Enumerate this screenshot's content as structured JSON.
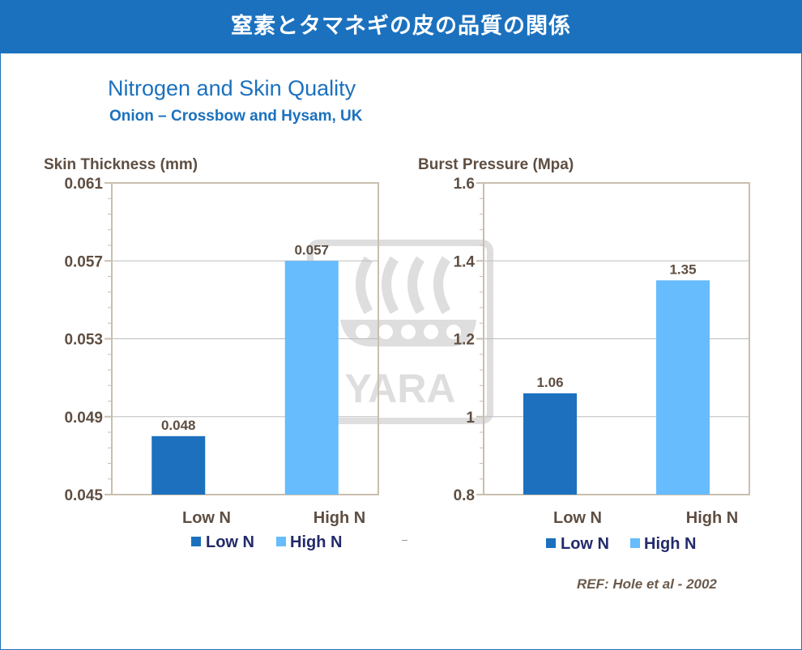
{
  "banner": {
    "title": "窒素とタマネギの皮の品質の関係"
  },
  "header": {
    "title": "Nitrogen and Skin Quality",
    "subtitle": "Onion – Crossbow and Hysam, UK"
  },
  "reference": "REF: Hole et al -  2002",
  "watermark": {
    "text": "YARA",
    "icon": "yara-viking-ship-logo"
  },
  "colors": {
    "banner": "#1b71be",
    "low_n": "#1c70be",
    "high_n": "#66bcfd",
    "axis_text": "#5e4e42",
    "plot_border": "#c9bfae",
    "grid": "#bdbdbd"
  },
  "chart_data": [
    {
      "type": "bar",
      "ylabel": "Skin Thickness (mm)",
      "categories": [
        "Low N",
        "High N"
      ],
      "series": [
        {
          "name": "Low N",
          "values": [
            0.048,
            null
          ]
        },
        {
          "name": "High N",
          "values": [
            null,
            0.057
          ]
        }
      ],
      "data_labels": [
        "0.048",
        "0.057"
      ],
      "ylim": [
        0.045,
        0.061
      ],
      "yticks": [
        0.045,
        0.049,
        0.053,
        0.057,
        0.061
      ],
      "ytick_labels": [
        "0.045",
        "0.049",
        "0.053",
        "0.057",
        "0.061"
      ],
      "legend": [
        "Low N",
        "High N"
      ],
      "legend_position": "bottom",
      "grid": true
    },
    {
      "type": "bar",
      "ylabel": "Burst Pressure (Mpa)",
      "categories": [
        "Low N",
        "High N"
      ],
      "series": [
        {
          "name": "Low N",
          "values": [
            1.06,
            null
          ]
        },
        {
          "name": "High N",
          "values": [
            null,
            1.35
          ]
        }
      ],
      "data_labels": [
        "1.06",
        "1.35"
      ],
      "ylim": [
        0.8,
        1.6
      ],
      "yticks": [
        0.8,
        1.0,
        1.2,
        1.4,
        1.6
      ],
      "ytick_labels": [
        "0.8",
        "1",
        "1.2",
        "1.4",
        "1.6"
      ],
      "legend": [
        "Low N",
        "High N"
      ],
      "legend_position": "bottom",
      "grid": true
    }
  ]
}
